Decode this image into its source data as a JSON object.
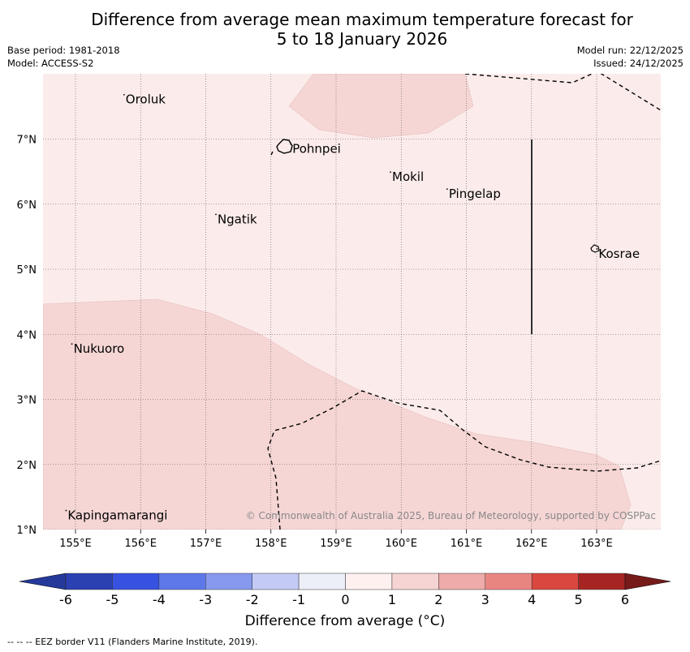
{
  "title": {
    "line1": "Difference from average mean maximum temperature forecast for",
    "line2": "5 to 18 January 2026"
  },
  "meta": {
    "base_period": "Base period: 1981-2018",
    "model": "Model: ACCESS-S2",
    "model_run": "Model run: 22/12/2025",
    "issued": "Issued: 24/12/2025"
  },
  "map": {
    "lon_range": [
      154.5,
      164.0
    ],
    "lat_range": [
      1.0,
      8.0
    ],
    "x_ticks": [
      {
        "lon": 155,
        "label": "155°E"
      },
      {
        "lon": 156,
        "label": "156°E"
      },
      {
        "lon": 157,
        "label": "157°E"
      },
      {
        "lon": 158,
        "label": "158°E"
      },
      {
        "lon": 159,
        "label": "159°E"
      },
      {
        "lon": 160,
        "label": "160°E"
      },
      {
        "lon": 161,
        "label": "161°E"
      },
      {
        "lon": 162,
        "label": "162°E"
      },
      {
        "lon": 163,
        "label": "163°E"
      }
    ],
    "y_ticks": [
      {
        "lat": 7,
        "label": "7°N"
      },
      {
        "lat": 6,
        "label": "6°N"
      },
      {
        "lat": 5,
        "label": "5°N"
      },
      {
        "lat": 4,
        "label": "4°N"
      },
      {
        "lat": 3,
        "label": "3°N"
      },
      {
        "lat": 2,
        "label": "2°N"
      },
      {
        "lat": 1,
        "label": "1°N"
      }
    ],
    "places": [
      {
        "name": "Oroluk",
        "lon": 155.77,
        "lat": 7.62
      },
      {
        "name": "Pohnpei",
        "lon": 158.33,
        "lat": 6.86
      },
      {
        "name": "Mokil",
        "lon": 159.86,
        "lat": 6.43
      },
      {
        "name": "Pingelap",
        "lon": 160.73,
        "lat": 6.17
      },
      {
        "name": "Ngatik",
        "lon": 157.18,
        "lat": 5.78
      },
      {
        "name": "Kosrae",
        "lon": 163.03,
        "lat": 5.25
      },
      {
        "name": "Nukuoro",
        "lon": 154.97,
        "lat": 3.79
      },
      {
        "name": "Kapingamarangi",
        "lon": 154.88,
        "lat": 1.23
      }
    ],
    "shading": [
      {
        "band": "0 to 1",
        "color": "#fbeceb"
      },
      {
        "band": "1 to 2",
        "color": "#f5d6d5"
      }
    ],
    "copyright": "© Commonwealth of Australia 2025, Bureau of Meteorology, supported by COSPPac"
  },
  "colorbar": {
    "ticks": [
      "-6",
      "-5",
      "-4",
      "-3",
      "-2",
      "-1",
      "0",
      "1",
      "2",
      "3",
      "4",
      "5",
      "6"
    ],
    "colors": [
      "#24399a",
      "#2b40b1",
      "#3752e0",
      "#5e78ea",
      "#8699ee",
      "#c3cbf5",
      "#eceef8",
      "#fdf0ef",
      "#f5d4d3",
      "#eeaba9",
      "#e98580",
      "#d9473e",
      "#a62523",
      "#771a1a"
    ],
    "title": "Difference from average (°C)"
  },
  "footer": "--  --  -- EEZ border V11 (Flanders Marine Institute, 2019)."
}
